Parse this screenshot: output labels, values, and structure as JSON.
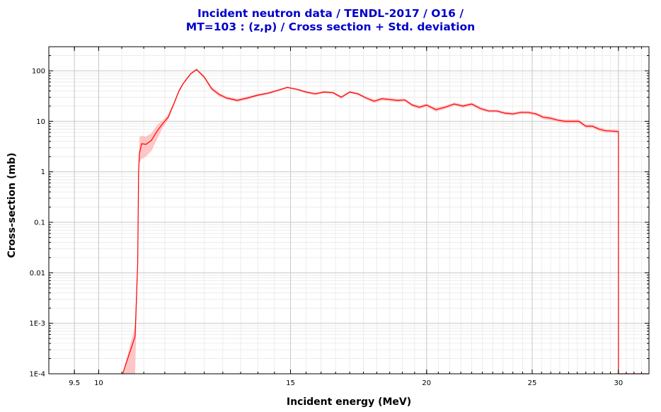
{
  "chart_data": {
    "type": "line",
    "title_lines": [
      "Incident neutron data / TENDL-2017 / O16 /",
      "MT=103 : (z,p) / Cross section + Std. deviation"
    ],
    "xlabel": "Incident energy (MeV)",
    "ylabel": "Cross-section (mb)",
    "xscale": "log",
    "yscale": "log",
    "xlim": [
      9.0,
      32.0
    ],
    "ylim": [
      0.0001,
      300
    ],
    "grid": true,
    "x_ticks": [
      {
        "value": 9.5,
        "label": "9.5"
      },
      {
        "value": 10,
        "label": "10"
      },
      {
        "value": 15,
        "label": "15"
      },
      {
        "value": 20,
        "label": "20"
      },
      {
        "value": 25,
        "label": "25"
      },
      {
        "value": 30,
        "label": "30"
      }
    ],
    "y_ticks": [
      {
        "value": 100,
        "label": "100"
      },
      {
        "value": 10,
        "label": "10"
      },
      {
        "value": 1,
        "label": "1"
      },
      {
        "value": 0.1,
        "label": "0.1"
      },
      {
        "value": 0.01,
        "label": "0.01"
      },
      {
        "value": 0.001,
        "label": "1E-3"
      },
      {
        "value": 0.0001,
        "label": "1E-4"
      }
    ],
    "colors": {
      "line": "#ff0000",
      "band": "#ffb3b3",
      "title": "#0000cc",
      "grid": "#c8c8c8"
    },
    "series": [
      {
        "x": [
          10.52,
          10.8,
          10.86,
          10.88,
          10.9,
          10.95,
          11.05,
          11.18,
          11.32,
          11.45,
          11.58,
          11.72,
          11.85,
          11.95,
          12.05,
          12.15,
          12.3,
          12.5,
          12.7,
          12.9,
          13.1,
          13.4,
          13.7,
          14.0,
          14.3,
          14.6,
          14.9,
          15.2,
          15.5,
          15.8,
          16.1,
          16.4,
          16.7,
          17.0,
          17.3,
          17.6,
          17.9,
          18.2,
          18.5,
          18.8,
          19.1,
          19.4,
          19.7,
          20.0,
          20.4,
          20.8,
          21.2,
          21.6,
          22.0,
          22.4,
          22.8,
          23.2,
          23.6,
          24.0,
          24.4,
          24.8,
          25.2,
          25.6,
          26.0,
          26.4,
          26.8,
          27.2,
          27.6,
          28.0,
          28.4,
          28.8,
          29.2,
          29.6,
          29.9,
          30.0,
          30.0,
          30.3,
          31.0,
          31.5,
          32.0
        ],
        "y": [
          0.0001,
          0.00055,
          0.016,
          1.0,
          2.3,
          3.6,
          3.5,
          4.2,
          6.5,
          9.0,
          12.0,
          22.0,
          40.0,
          55.0,
          70.0,
          88.0,
          106.0,
          75.0,
          44.0,
          34.0,
          29.0,
          26.0,
          29.0,
          33.0,
          36.0,
          41.0,
          47.0,
          43.0,
          38.0,
          35.0,
          38.0,
          37.0,
          30.0,
          38.0,
          35.0,
          29.0,
          25.0,
          28.0,
          27.0,
          26.0,
          26.5,
          21.0,
          19.0,
          21.0,
          17.0,
          19.0,
          22.0,
          20.0,
          22.0,
          18.0,
          16.0,
          16.0,
          14.5,
          14.0,
          15.0,
          15.0,
          14.0,
          12.0,
          11.5,
          10.5,
          10.0,
          10.0,
          10.0,
          8.0,
          8.0,
          7.0,
          6.5,
          6.4,
          6.3,
          6.3,
          0.0001,
          0.0001,
          0.0001,
          0.0001,
          0.0001
        ],
        "y_upper": [
          0.0001,
          0.0009,
          0.02,
          1.5,
          4.8,
          5.2,
          5.0,
          5.8,
          8.5,
          10.5,
          13.5,
          24.0,
          43.0,
          58.0,
          74.0,
          92.0,
          111.0,
          80.0,
          48.0,
          37.0,
          31.0,
          28.0,
          31.0,
          35.0,
          38.0,
          43.0,
          49.0,
          45.0,
          40.0,
          37.0,
          40.0,
          39.0,
          32.0,
          40.0,
          37.0,
          31.0,
          27.0,
          30.0,
          29.0,
          28.0,
          28.0,
          22.5,
          20.5,
          22.5,
          18.5,
          20.5,
          23.5,
          21.5,
          23.5,
          19.5,
          17.0,
          17.0,
          15.5,
          15.0,
          16.0,
          16.0,
          15.0,
          13.0,
          12.5,
          11.3,
          10.8,
          10.8,
          10.8,
          8.6,
          8.6,
          7.6,
          7.0,
          6.9,
          6.8,
          6.8,
          0.0001,
          0.0001,
          0.0001,
          0.0001,
          0.0001
        ],
        "y_lower": [
          0.0001,
          0.0001,
          0.01,
          0.6,
          1.5,
          1.8,
          2.0,
          2.6,
          4.5,
          7.5,
          10.5,
          20.0,
          37.0,
          52.0,
          66.0,
          84.0,
          101.0,
          70.0,
          40.0,
          31.0,
          27.0,
          24.0,
          27.0,
          31.0,
          34.0,
          39.0,
          45.0,
          41.0,
          36.0,
          33.0,
          36.0,
          35.0,
          28.0,
          36.0,
          33.0,
          27.0,
          23.0,
          26.0,
          25.0,
          24.0,
          24.5,
          19.5,
          17.5,
          19.5,
          15.5,
          17.5,
          20.5,
          18.5,
          20.5,
          16.5,
          15.0,
          15.0,
          13.5,
          13.0,
          14.0,
          14.0,
          13.0,
          11.0,
          10.5,
          9.7,
          9.2,
          9.2,
          9.2,
          7.4,
          7.4,
          6.4,
          6.0,
          5.9,
          5.8,
          5.8,
          0.0001,
          0.0001,
          0.0001,
          0.0001,
          0.0001
        ]
      }
    ]
  }
}
